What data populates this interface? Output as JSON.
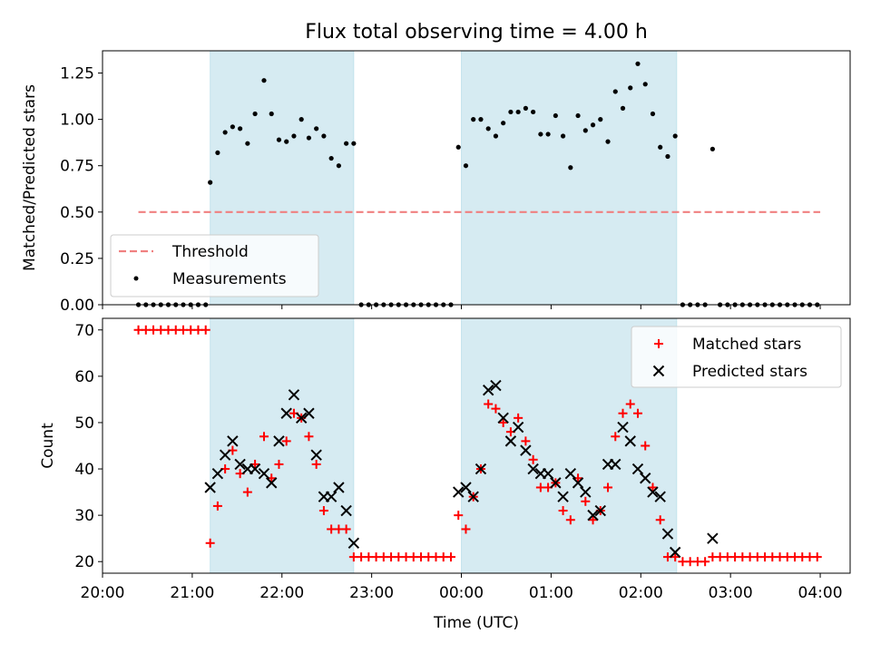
{
  "chart_data": [
    {
      "type": "scatter",
      "title": "Flux total observing time = 4.00 h",
      "ylabel": "Matched/Predicted stars",
      "xlabel": "",
      "x_axis": "time",
      "xlim": [
        "20:00",
        "04:20"
      ],
      "ylim": [
        0,
        1.37
      ],
      "yticks": [
        0.0,
        0.25,
        0.5,
        0.75,
        1.0,
        1.25
      ],
      "ytick_labels": [
        "0.00",
        "0.25",
        "0.50",
        "0.75",
        "1.00",
        "1.25"
      ],
      "shaded_intervals": [
        [
          "21:12",
          "22:48"
        ],
        [
          "00:00",
          "02:24"
        ]
      ],
      "legend": {
        "placement": "lower-left",
        "entries": [
          "Threshold",
          "Measurements"
        ]
      },
      "series": [
        {
          "name": "Threshold",
          "style": "dashed-line",
          "color": "#f08080",
          "points": [
            [
              "20:24",
              0.5
            ],
            [
              "23:58",
              0.5
            ],
            [
              "04:00",
              0.5
            ]
          ]
        },
        {
          "name": "Measurements",
          "style": "dot",
          "color": "#000000",
          "points": [
            [
              "20:24",
              0
            ],
            [
              "20:29",
              0
            ],
            [
              "20:34",
              0
            ],
            [
              "20:39",
              0
            ],
            [
              "20:44",
              0
            ],
            [
              "20:49",
              0
            ],
            [
              "20:54",
              0
            ],
            [
              "20:59",
              0
            ],
            [
              "21:04",
              0
            ],
            [
              "21:09",
              0
            ],
            [
              "21:12",
              0.66
            ],
            [
              "21:17",
              0.82
            ],
            [
              "21:22",
              0.93
            ],
            [
              "21:27",
              0.96
            ],
            [
              "21:32",
              0.95
            ],
            [
              "21:37",
              0.87
            ],
            [
              "21:42",
              1.03
            ],
            [
              "21:48",
              1.21
            ],
            [
              "21:53",
              1.03
            ],
            [
              "21:58",
              0.89
            ],
            [
              "22:03",
              0.88
            ],
            [
              "22:08",
              0.91
            ],
            [
              "22:13",
              1.0
            ],
            [
              "22:18",
              0.9
            ],
            [
              "22:23",
              0.95
            ],
            [
              "22:28",
              0.91
            ],
            [
              "22:33",
              0.79
            ],
            [
              "22:38",
              0.75
            ],
            [
              "22:43",
              0.87
            ],
            [
              "22:48",
              0.87
            ],
            [
              "22:53",
              0
            ],
            [
              "22:58",
              0
            ],
            [
              "23:03",
              0
            ],
            [
              "23:08",
              0
            ],
            [
              "23:13",
              0
            ],
            [
              "23:18",
              0
            ],
            [
              "23:23",
              0
            ],
            [
              "23:28",
              0
            ],
            [
              "23:33",
              0
            ],
            [
              "23:38",
              0
            ],
            [
              "23:43",
              0
            ],
            [
              "23:48",
              0
            ],
            [
              "23:53",
              0
            ],
            [
              "23:58",
              0.85
            ],
            [
              "00:03",
              0.75
            ],
            [
              "00:08",
              1.0
            ],
            [
              "00:13",
              1.0
            ],
            [
              "00:18",
              0.95
            ],
            [
              "00:23",
              0.91
            ],
            [
              "00:28",
              0.98
            ],
            [
              "00:33",
              1.04
            ],
            [
              "00:38",
              1.04
            ],
            [
              "00:43",
              1.06
            ],
            [
              "00:48",
              1.04
            ],
            [
              "00:53",
              0.92
            ],
            [
              "00:58",
              0.92
            ],
            [
              "01:03",
              1.02
            ],
            [
              "01:08",
              0.91
            ],
            [
              "01:13",
              0.74
            ],
            [
              "01:18",
              1.02
            ],
            [
              "01:23",
              0.94
            ],
            [
              "01:28",
              0.97
            ],
            [
              "01:33",
              1.0
            ],
            [
              "01:38",
              0.88
            ],
            [
              "01:43",
              1.15
            ],
            [
              "01:48",
              1.06
            ],
            [
              "01:53",
              1.17
            ],
            [
              "01:58",
              1.3
            ],
            [
              "02:03",
              1.19
            ],
            [
              "02:08",
              1.03
            ],
            [
              "02:13",
              0.85
            ],
            [
              "02:18",
              0.8
            ],
            [
              "02:23",
              0.91
            ],
            [
              "02:28",
              0
            ],
            [
              "02:33",
              0
            ],
            [
              "02:38",
              0
            ],
            [
              "02:43",
              0
            ],
            [
              "02:48",
              0.84
            ],
            [
              "02:53",
              0
            ],
            [
              "02:58",
              0
            ],
            [
              "03:03",
              0
            ],
            [
              "03:08",
              0
            ],
            [
              "03:13",
              0
            ],
            [
              "03:18",
              0
            ],
            [
              "03:23",
              0
            ],
            [
              "03:28",
              0
            ],
            [
              "03:33",
              0
            ],
            [
              "03:38",
              0
            ],
            [
              "03:43",
              0
            ],
            [
              "03:48",
              0
            ],
            [
              "03:53",
              0
            ],
            [
              "03:58",
              0
            ]
          ]
        }
      ]
    },
    {
      "type": "scatter",
      "title": "",
      "ylabel": "Count",
      "xlabel": "Time (UTC)",
      "x_axis": "time",
      "xlim": [
        "20:00",
        "04:20"
      ],
      "ylim": [
        17.5,
        72.5
      ],
      "yticks": [
        20,
        30,
        40,
        50,
        60,
        70
      ],
      "ytick_labels": [
        "20",
        "30",
        "40",
        "50",
        "60",
        "70"
      ],
      "xticks": [
        "20:00",
        "21:00",
        "22:00",
        "23:00",
        "00:00",
        "01:00",
        "02:00",
        "03:00",
        "04:00"
      ],
      "xtick_labels": [
        "20:00",
        "21:00",
        "22:00",
        "23:00",
        "00:00",
        "01:00",
        "02:00",
        "03:00",
        "04:00"
      ],
      "shaded_intervals": [
        [
          "21:12",
          "22:48"
        ],
        [
          "00:00",
          "02:24"
        ]
      ],
      "legend": {
        "placement": "upper-right",
        "entries": [
          "Matched stars",
          "Predicted stars"
        ]
      },
      "series": [
        {
          "name": "Matched stars",
          "marker": "plus",
          "color": "#ff0000",
          "points": [
            [
              "20:24",
              70
            ],
            [
              "20:29",
              70
            ],
            [
              "20:34",
              70
            ],
            [
              "20:39",
              70
            ],
            [
              "20:44",
              70
            ],
            [
              "20:49",
              70
            ],
            [
              "20:54",
              70
            ],
            [
              "20:59",
              70
            ],
            [
              "21:04",
              70
            ],
            [
              "21:09",
              70
            ],
            [
              "21:12",
              24
            ],
            [
              "21:17",
              32
            ],
            [
              "21:22",
              40
            ],
            [
              "21:27",
              44
            ],
            [
              "21:32",
              39
            ],
            [
              "21:37",
              35
            ],
            [
              "21:42",
              41
            ],
            [
              "21:48",
              47
            ],
            [
              "21:53",
              38
            ],
            [
              "21:58",
              41
            ],
            [
              "22:03",
              46
            ],
            [
              "22:08",
              52
            ],
            [
              "22:13",
              51
            ],
            [
              "22:18",
              47
            ],
            [
              "22:23",
              41
            ],
            [
              "22:28",
              31
            ],
            [
              "22:33",
              27
            ],
            [
              "22:38",
              27
            ],
            [
              "22:43",
              27
            ],
            [
              "22:48",
              21
            ],
            [
              "22:53",
              21
            ],
            [
              "22:58",
              21
            ],
            [
              "23:03",
              21
            ],
            [
              "23:08",
              21
            ],
            [
              "23:13",
              21
            ],
            [
              "23:18",
              21
            ],
            [
              "23:23",
              21
            ],
            [
              "23:28",
              21
            ],
            [
              "23:33",
              21
            ],
            [
              "23:38",
              21
            ],
            [
              "23:43",
              21
            ],
            [
              "23:48",
              21
            ],
            [
              "23:53",
              21
            ],
            [
              "23:58",
              30
            ],
            [
              "00:03",
              27
            ],
            [
              "00:08",
              34
            ],
            [
              "00:13",
              40
            ],
            [
              "00:18",
              54
            ],
            [
              "00:23",
              53
            ],
            [
              "00:28",
              50
            ],
            [
              "00:33",
              48
            ],
            [
              "00:38",
              51
            ],
            [
              "00:43",
              46
            ],
            [
              "00:48",
              42
            ],
            [
              "00:53",
              36
            ],
            [
              "00:58",
              36
            ],
            [
              "01:03",
              37
            ],
            [
              "01:08",
              31
            ],
            [
              "01:13",
              29
            ],
            [
              "01:18",
              38
            ],
            [
              "01:23",
              33
            ],
            [
              "01:28",
              29
            ],
            [
              "01:33",
              31
            ],
            [
              "01:38",
              36
            ],
            [
              "01:43",
              47
            ],
            [
              "01:48",
              52
            ],
            [
              "01:53",
              54
            ],
            [
              "01:58",
              52
            ],
            [
              "02:03",
              45
            ],
            [
              "02:08",
              36
            ],
            [
              "02:13",
              29
            ],
            [
              "02:18",
              21
            ],
            [
              "02:23",
              21
            ],
            [
              "02:28",
              20
            ],
            [
              "02:33",
              20
            ],
            [
              "02:38",
              20
            ],
            [
              "02:43",
              20
            ],
            [
              "02:48",
              21
            ],
            [
              "02:53",
              21
            ],
            [
              "02:58",
              21
            ],
            [
              "03:03",
              21
            ],
            [
              "03:08",
              21
            ],
            [
              "03:13",
              21
            ],
            [
              "03:18",
              21
            ],
            [
              "03:23",
              21
            ],
            [
              "03:28",
              21
            ],
            [
              "03:33",
              21
            ],
            [
              "03:38",
              21
            ],
            [
              "03:43",
              21
            ],
            [
              "03:48",
              21
            ],
            [
              "03:53",
              21
            ],
            [
              "03:58",
              21
            ]
          ]
        },
        {
          "name": "Predicted stars",
          "marker": "x",
          "color": "#000000",
          "points": [
            [
              "21:12",
              36
            ],
            [
              "21:17",
              39
            ],
            [
              "21:22",
              43
            ],
            [
              "21:27",
              46
            ],
            [
              "21:32",
              41
            ],
            [
              "21:37",
              40
            ],
            [
              "21:42",
              40
            ],
            [
              "21:48",
              39
            ],
            [
              "21:53",
              37
            ],
            [
              "21:58",
              46
            ],
            [
              "22:03",
              52
            ],
            [
              "22:08",
              56
            ],
            [
              "22:13",
              51
            ],
            [
              "22:18",
              52
            ],
            [
              "22:23",
              43
            ],
            [
              "22:28",
              34
            ],
            [
              "22:33",
              34
            ],
            [
              "22:38",
              36
            ],
            [
              "22:43",
              31
            ],
            [
              "22:48",
              24
            ],
            [
              "23:58",
              35
            ],
            [
              "00:03",
              36
            ],
            [
              "00:08",
              34
            ],
            [
              "00:13",
              40
            ],
            [
              "00:18",
              57
            ],
            [
              "00:23",
              58
            ],
            [
              "00:28",
              51
            ],
            [
              "00:33",
              46
            ],
            [
              "00:38",
              49
            ],
            [
              "00:43",
              44
            ],
            [
              "00:48",
              40
            ],
            [
              "00:53",
              39
            ],
            [
              "00:58",
              39
            ],
            [
              "01:03",
              37
            ],
            [
              "01:08",
              34
            ],
            [
              "01:13",
              39
            ],
            [
              "01:18",
              37
            ],
            [
              "01:23",
              35
            ],
            [
              "01:28",
              30
            ],
            [
              "01:33",
              31
            ],
            [
              "01:38",
              41
            ],
            [
              "01:43",
              41
            ],
            [
              "01:48",
              49
            ],
            [
              "01:53",
              46
            ],
            [
              "01:58",
              40
            ],
            [
              "02:03",
              38
            ],
            [
              "02:08",
              35
            ],
            [
              "02:13",
              34
            ],
            [
              "02:18",
              26
            ],
            [
              "02:23",
              22
            ],
            [
              "02:48",
              25
            ]
          ]
        }
      ]
    }
  ]
}
